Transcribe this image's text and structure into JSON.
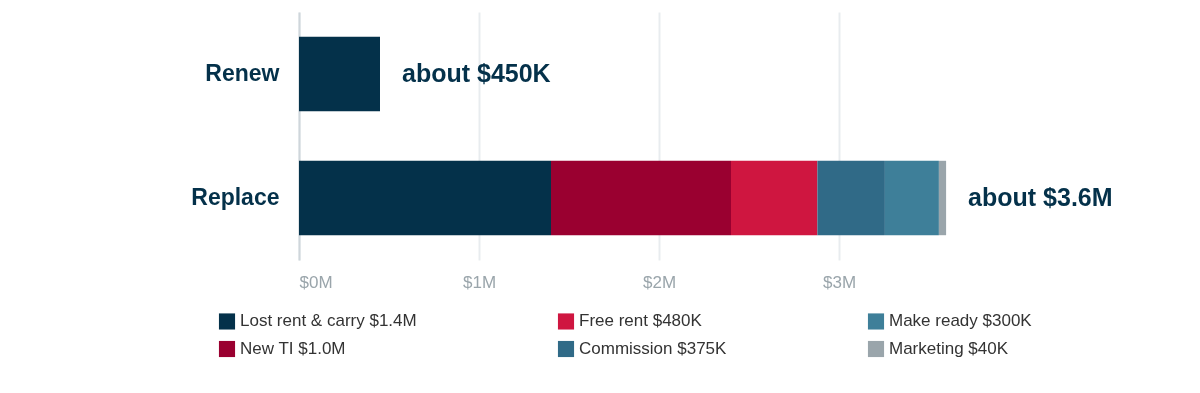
{
  "chart_data": {
    "type": "bar",
    "orientation": "horizontal",
    "stacked": true,
    "categories": [
      "Renew",
      "Replace"
    ],
    "series": [
      {
        "color": "#04314a",
        "values": [
          0.45,
          null
        ]
      },
      {
        "name": "Lost rent & carry $1.4M",
        "color": "#04314a",
        "values": [
          null,
          1.4
        ]
      },
      {
        "name": "New TI $1.0M",
        "color": "#9a0030",
        "values": [
          null,
          1.0
        ]
      },
      {
        "name": "Free rent $480K",
        "color": "#cf1640",
        "values": [
          null,
          0.48
        ]
      },
      {
        "name": "Commission $375K",
        "color": "#306a87",
        "values": [
          null,
          0.375
        ]
      },
      {
        "name": "Make ready $300K",
        "color": "#3e7f99",
        "values": [
          null,
          0.3
        ]
      },
      {
        "name": "Marketing $40K",
        "color": "#9aa5ab",
        "values": [
          null,
          0.04
        ]
      }
    ],
    "totals": [
      "about $450K",
      "about $3.6M"
    ],
    "xlim": [
      0,
      3.6
    ],
    "xticks": [
      {
        "value": 0,
        "label": "$0M"
      },
      {
        "value": 1,
        "label": "$1M"
      },
      {
        "value": 2,
        "label": "$2M"
      },
      {
        "value": 3,
        "label": "$3M"
      }
    ],
    "grid": "x",
    "legend": "bottom"
  }
}
